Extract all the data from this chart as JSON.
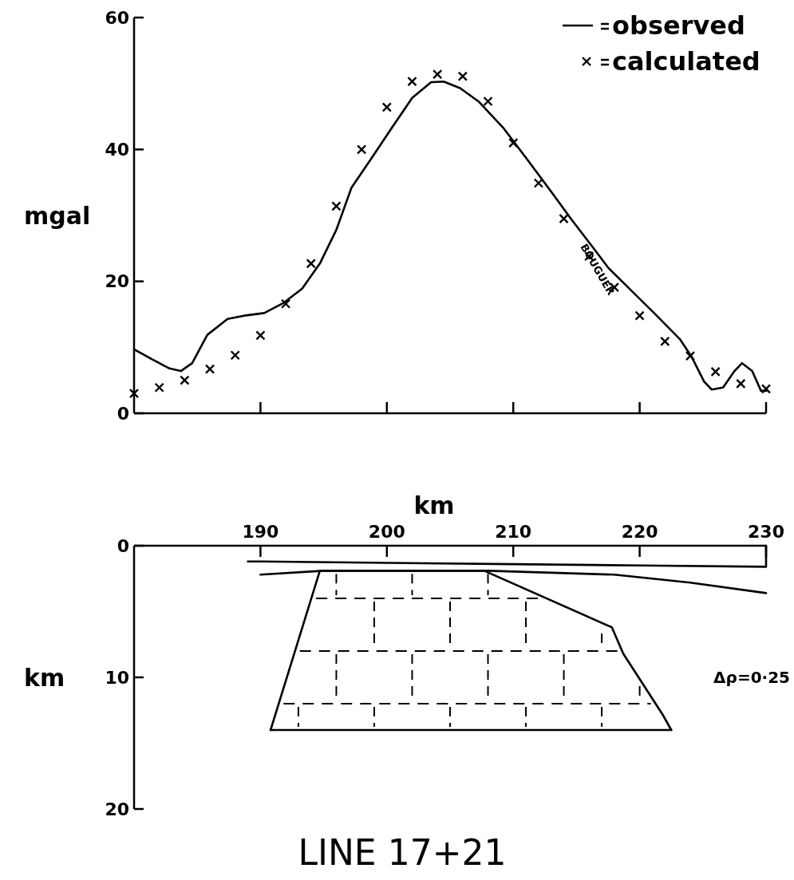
{
  "chart_data": [
    {
      "type": "line",
      "ylabel": "mgal",
      "xlim": [
        180,
        230
      ],
      "ylim": [
        0,
        60
      ],
      "xticks": [
        {
          "value": 190,
          "label": null
        },
        {
          "value": 200,
          "label": null
        },
        {
          "value": 210,
          "label": null
        },
        {
          "value": 220,
          "label": null
        },
        {
          "value": 230,
          "label": null
        }
      ],
      "yticks": [
        0,
        20,
        40,
        60
      ],
      "tick_labels": "y",
      "legend": "top right",
      "grid": false,
      "series": [
        {
          "name": "observed",
          "color": "#000000",
          "x": [
            180,
            181.4,
            182.8,
            183.7,
            184.6,
            185.8,
            187.4,
            188.7,
            190.3,
            191.8,
            193.3,
            194.7,
            196,
            197.2,
            198.8,
            200.4,
            202,
            203.5,
            204.5,
            205.8,
            207.3,
            209.2,
            211.1,
            213,
            214.6,
            216.2,
            217.5,
            219.4,
            221.3,
            223.2,
            224.1,
            225.1,
            225.7,
            226.6,
            227.5,
            228.1,
            228.9,
            229.6,
            230
          ],
          "values": [
            9.7,
            8.2,
            6.8,
            6.4,
            7.6,
            11.9,
            14.3,
            14.8,
            15.2,
            16.7,
            18.9,
            22.7,
            27.8,
            34.2,
            38.7,
            43.3,
            47.8,
            50.2,
            50.3,
            49.3,
            47.2,
            43.3,
            38.5,
            33.6,
            29.4,
            25.4,
            22.1,
            18.5,
            14.9,
            11.2,
            8.6,
            4.8,
            3.6,
            3.9,
            6.4,
            7.6,
            6.4,
            3.4,
            3.4
          ]
        },
        {
          "name": "calculated",
          "type": "scatter",
          "color": "#000000",
          "marker": "cross",
          "x": [
            180,
            182,
            184,
            186,
            188,
            190,
            192,
            194,
            196,
            198,
            200,
            202,
            204,
            206,
            208,
            210,
            212,
            214,
            216,
            218,
            220,
            222,
            224,
            226,
            228,
            230
          ],
          "values": [
            3.0,
            3.9,
            5.0,
            6.7,
            8.8,
            11.8,
            16.6,
            22.7,
            31.4,
            40.0,
            46.4,
            50.3,
            51.4,
            51.1,
            47.3,
            41.0,
            34.9,
            29.5,
            23.8,
            19.1,
            14.8,
            10.9,
            8.7,
            6.3,
            4.5,
            3.7
          ]
        }
      ],
      "annotations": [
        "BOUGUER"
      ]
    },
    {
      "type": "line",
      "title": "LINE 17+21",
      "xlabel": "km",
      "ylabel": "km",
      "xlim": [
        180,
        230
      ],
      "ylim": [
        20,
        0
      ],
      "xticks": [
        190,
        200,
        210,
        220,
        230
      ],
      "yticks": [
        0,
        10,
        20
      ],
      "grid": false,
      "legend": false,
      "series": [
        {
          "color": "#000000",
          "x": [
            230,
            230,
            220,
            210,
            200,
            190,
            189
          ],
          "values": [
            0,
            1.6,
            1.5,
            1.4,
            1.3,
            1.2,
            1.2
          ]
        },
        {
          "color": "#000000",
          "x": [
            190,
            195,
            208,
            218,
            224,
            230
          ],
          "values": [
            2.2,
            1.9,
            1.9,
            2.2,
            2.8,
            3.6
          ]
        },
        {
          "color": "#000000",
          "x": [
            190.8,
            194.7,
            207.7,
            217.8,
            218.7,
            221.8,
            222.5
          ],
          "values": [
            14,
            1.9,
            1.9,
            6.2,
            8.2,
            12.8,
            14
          ]
        },
        {
          "color": "#000000",
          "x": [
            190.8,
            222.5
          ],
          "values": [
            14,
            14
          ]
        }
      ],
      "annotations": [
        "Δρ=0·25"
      ]
    }
  ]
}
